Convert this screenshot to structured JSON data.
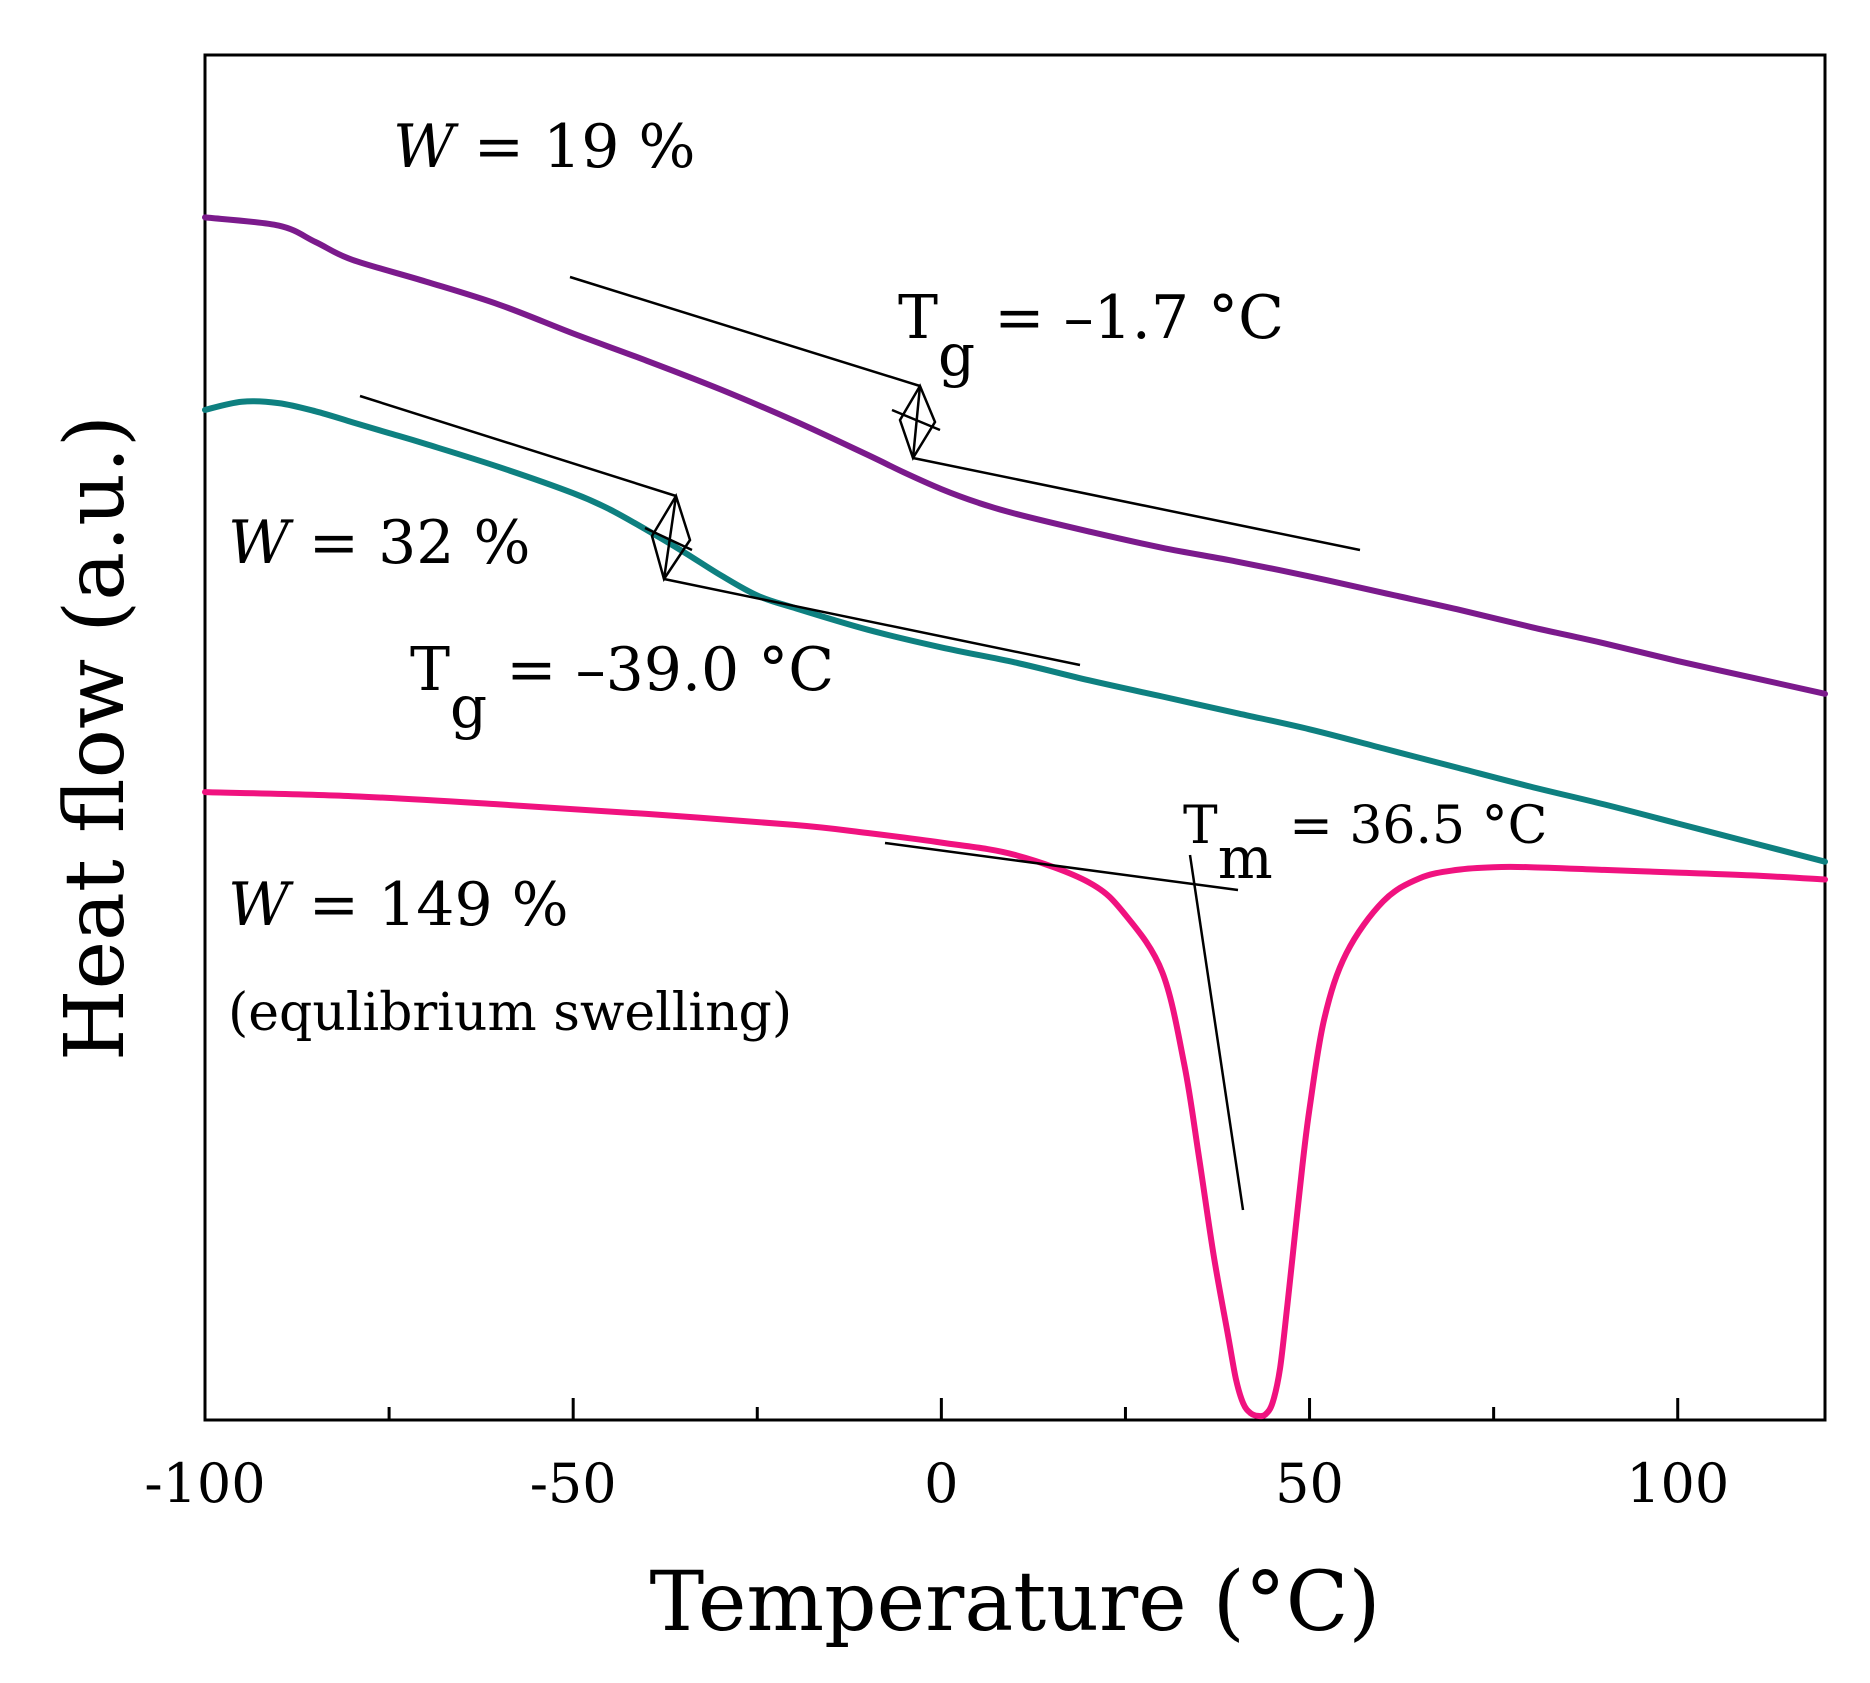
{
  "chart_data": {
    "type": "line",
    "title": "",
    "xlabel": "Temperature (°C)",
    "ylabel": "Heat flow (a.u.)",
    "xlim": [
      -100,
      120
    ],
    "ylim": [
      0,
      100
    ],
    "x_ticks": [
      -100,
      -50,
      0,
      50,
      100
    ],
    "x_tick_labels": [
      "-100",
      "-50",
      "0",
      "50",
      "100"
    ],
    "x_minor_ticks": [
      -75,
      -25,
      25,
      75
    ],
    "legend": "none",
    "grid": false,
    "series": [
      {
        "name": "W = 19 %",
        "color": "#7B1A8C",
        "x": [
          -100,
          -90,
          -85,
          -80,
          -70,
          -60,
          -50,
          -40,
          -30,
          -20,
          -10,
          -5,
          0,
          5,
          10,
          20,
          30,
          40,
          50,
          60,
          70,
          80,
          90,
          100,
          110,
          120
        ],
        "y": [
          88.1,
          87.5,
          86.3,
          85.0,
          83.4,
          81.7,
          79.6,
          77.6,
          75.5,
          73.2,
          70.7,
          69.4,
          68.2,
          67.2,
          66.4,
          65.1,
          63.9,
          62.9,
          61.8,
          60.6,
          59.4,
          58.1,
          56.9,
          55.6,
          54.4,
          53.2
        ]
      },
      {
        "name": "W = 32 %",
        "color": "#0E8080",
        "x": [
          -100,
          -95,
          -90,
          -85,
          -80,
          -75,
          -70,
          -60,
          -50,
          -45,
          -40,
          -35,
          -30,
          -25,
          -20,
          -10,
          0,
          10,
          20,
          30,
          40,
          50,
          60,
          70,
          80,
          90,
          100,
          110,
          120
        ],
        "y": [
          74.0,
          74.6,
          74.5,
          73.9,
          73.1,
          72.3,
          71.5,
          69.8,
          67.9,
          66.7,
          65.2,
          63.6,
          61.9,
          60.4,
          59.5,
          57.9,
          56.6,
          55.5,
          54.2,
          53.0,
          51.8,
          50.6,
          49.2,
          47.8,
          46.4,
          45.1,
          43.7,
          42.3,
          40.9
        ]
      },
      {
        "name": "W = 149 %",
        "color": "#F0127F",
        "x": [
          -100,
          -80,
          -60,
          -40,
          -20,
          -10,
          0,
          10,
          20,
          25,
          30,
          33,
          35,
          37,
          39,
          40,
          41,
          42,
          43,
          44,
          45,
          46,
          47,
          48,
          49,
          50,
          52,
          55,
          60,
          65,
          70,
          75,
          80,
          90,
          100,
          110,
          120
        ],
        "y": [
          46.0,
          45.7,
          45.1,
          44.4,
          43.6,
          43.0,
          42.3,
          41.4,
          39.4,
          37.0,
          32.8,
          26.0,
          19.2,
          12.0,
          6.0,
          3.0,
          1.2,
          0.5,
          0.3,
          0.4,
          1.3,
          3.8,
          8.5,
          13.5,
          18.5,
          22.8,
          29.4,
          34.2,
          38.0,
          39.7,
          40.3,
          40.5,
          40.5,
          40.3,
          40.1,
          39.9,
          39.6
        ]
      }
    ],
    "annotations": [
      {
        "text": "W = 19 %",
        "x": -77,
        "y": 91.3
      },
      {
        "text": "T",
        "sub": "g",
        "rest": " = –1.7 °C",
        "x": -3,
        "y": 81.0
      },
      {
        "text": "W = 32 %",
        "x": -99,
        "y": 66.0
      },
      {
        "text": "T",
        "sub": "g",
        "rest": " = –39.0 °C",
        "x": -29,
        "y": 54.0
      },
      {
        "text": "T",
        "sub": "m",
        "rest": " = 36.5 °C",
        "x": 33,
        "y": 44.2
      },
      {
        "text": "W = 149 %",
        "x": -99,
        "y": 37.8
      },
      {
        "text": "(equlibrium swelling)",
        "x": -99,
        "y": 30.0
      }
    ]
  },
  "labels": {
    "w19_value": " = 19 %",
    "w32_value": " = 32 %",
    "w149_value": " = 149 %",
    "w_symbol": "W",
    "equilibrium": "(equlibrium swelling)",
    "tg1_prefix": "T",
    "tg1_sub": "g",
    "tg1_rest": " = –1.7 °C",
    "tg2_prefix": "T",
    "tg2_sub": "g",
    "tg2_rest": " = –39.0 °C",
    "tm_prefix": "T",
    "tm_sub": "m",
    "tm_rest": " = 36.5 °C"
  }
}
